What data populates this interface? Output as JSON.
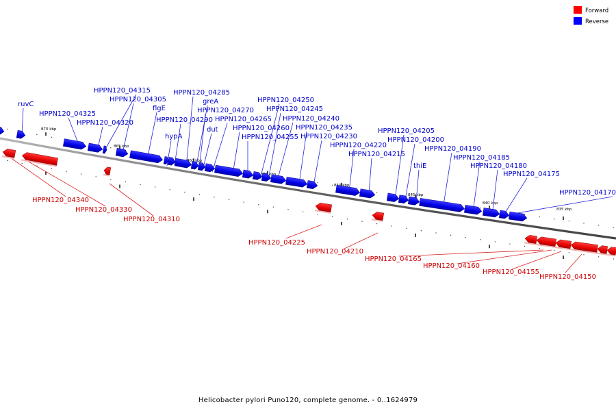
{
  "legend": {
    "forward_label": "Forward",
    "reverse_label": "Reverse",
    "forward_color": "#ff0000",
    "reverse_color": "#0000ff"
  },
  "caption": "Helicobacter pylori Puno120, complete genome. - 0..1624979",
  "axis": {
    "tick_labels": [
      "870 kbp",
      "865 kbp",
      "860 kbp",
      "855 kbp",
      "850 kbp",
      "845 kbp",
      "840 kbp",
      "835 kbp"
    ]
  },
  "reverse_genes": [
    "ruvC",
    "HPPN120_04325",
    "HPPN120_04320",
    "HPPN120_04315",
    "HPPN120_04305",
    "flgE",
    "HPPN120_04290",
    "hypA",
    "HPPN120_04285",
    "greA",
    "dut",
    "HPPN120_04270",
    "HPPN120_04265",
    "HPPN120_04260",
    "HPPN120_04255",
    "HPPN120_04250",
    "HPPN120_04245",
    "HPPN120_04240",
    "HPPN120_04235",
    "HPPN120_04230",
    "HPPN120_04220",
    "HPPN120_04215",
    "HPPN120_04205",
    "HPPN120_04200",
    "thiE",
    "HPPN120_04190",
    "HPPN120_04185",
    "HPPN120_04180",
    "HPPN120_04175",
    "HPPN120_04170"
  ],
  "forward_genes": [
    "HPPN120_04340",
    "HPPN120_04330",
    "HPPN120_04310",
    "HPPN120_04225",
    "HPPN120_04210",
    "HPPN120_04165",
    "HPPN120_04160",
    "HPPN120_04155",
    "HPPN120_04150"
  ]
}
